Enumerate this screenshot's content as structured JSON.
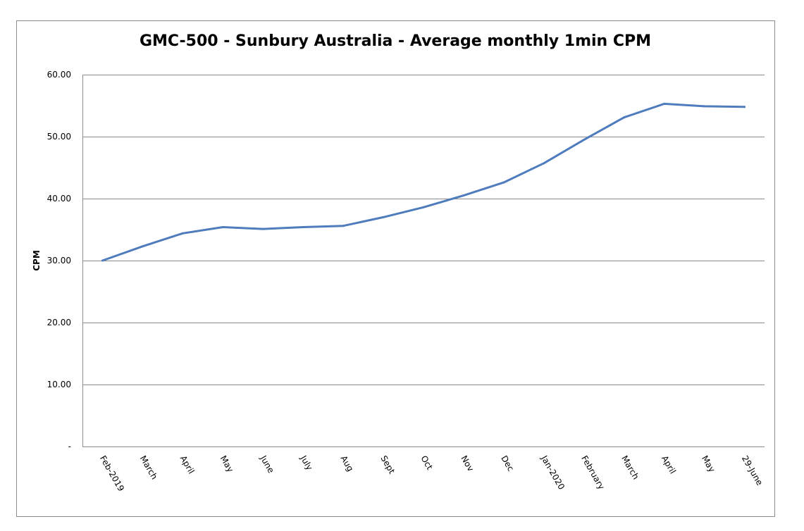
{
  "chart_data": {
    "type": "line",
    "title": "GMC-500 - Sunbury Australia - Average monthly 1min CPM",
    "xlabel": "",
    "ylabel": "CPM",
    "categories": [
      "Feb-2019",
      "March",
      "April",
      "May",
      "June",
      "July",
      "Aug",
      "Sept",
      "Oct",
      "Nov",
      "Dec",
      "Jan-2020",
      "February",
      "March",
      "April",
      "May",
      "29-June"
    ],
    "series": [
      {
        "values": [
          30.0,
          32.3,
          34.4,
          35.4,
          35.1,
          35.4,
          35.6,
          37.0,
          38.6,
          40.5,
          42.6,
          45.7,
          49.5,
          53.1,
          55.3,
          54.9,
          54.8
        ],
        "color": "#4f7cbd"
      }
    ],
    "ylim": [
      0,
      60
    ],
    "yticks": [
      {
        "value": 0,
        "label": "-"
      },
      {
        "value": 10,
        "label": "10.00"
      },
      {
        "value": 20,
        "label": "20.00"
      },
      {
        "value": 30,
        "label": "30.00"
      },
      {
        "value": 40,
        "label": "40.00"
      },
      {
        "value": 50,
        "label": "50.00"
      },
      {
        "value": 60,
        "label": "60.00"
      }
    ],
    "grid": true,
    "legend": "none"
  }
}
